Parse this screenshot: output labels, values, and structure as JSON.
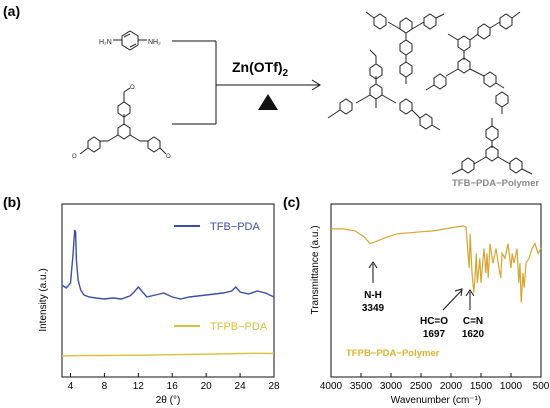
{
  "panel_labels": {
    "a": "(a)",
    "b": "(b)",
    "c": "(c)"
  },
  "scheme": {
    "reagent": "Zn(OTf)",
    "reagent_subscript": "2",
    "product_label": "TFB−PDA−Polymer"
  },
  "colors": {
    "tfb_pda": "#3b4fa6",
    "tfpb_pda": "#d9c23a",
    "ir": "#d8a530",
    "ir_label": "#d9b530"
  },
  "chart_data": [
    {
      "type": "line",
      "title": "",
      "xlabel": "2θ (°)",
      "ylabel": "Intensity (a.u.)",
      "xlim": [
        3,
        28
      ],
      "x_ticks": [
        "4",
        "8",
        "12",
        "16",
        "20",
        "24",
        "28"
      ],
      "x_tick_values": [
        4,
        8,
        12,
        16,
        20,
        24,
        28
      ],
      "legend_placement": "inline labels right",
      "series": [
        {
          "name": "TFB−PDA",
          "x": [
            3,
            3.5,
            4,
            4.3,
            4.5,
            4.6,
            4.7,
            4.9,
            5.2,
            5.6,
            6.2,
            7,
            8,
            9,
            10,
            11,
            11.5,
            12,
            12.5,
            13,
            14,
            15,
            16,
            17,
            18,
            19,
            20,
            21,
            22,
            23,
            23.5,
            24,
            25,
            26,
            27,
            28
          ],
          "y": [
            0.45,
            0.42,
            0.47,
            0.75,
            1.0,
            0.98,
            0.7,
            0.5,
            0.4,
            0.35,
            0.33,
            0.32,
            0.31,
            0.32,
            0.31,
            0.34,
            0.38,
            0.43,
            0.38,
            0.33,
            0.35,
            0.37,
            0.33,
            0.31,
            0.33,
            0.34,
            0.35,
            0.36,
            0.37,
            0.39,
            0.43,
            0.38,
            0.36,
            0.39,
            0.37,
            0.33
          ]
        },
        {
          "name": "TFPB−PDA",
          "x": [
            3,
            5,
            8,
            12,
            16,
            20,
            24,
            26,
            28
          ],
          "y": [
            0.0,
            0.01,
            0.015,
            0.02,
            0.035,
            0.05,
            0.07,
            0.075,
            0.07
          ]
        }
      ]
    },
    {
      "type": "line",
      "title": "",
      "xlabel": "Wavenumber (cm⁻¹)",
      "ylabel": "Transmittance (a.u.)",
      "xlim": [
        4000,
        500
      ],
      "x_ticks": [
        "4000",
        "3500",
        "3000",
        "2500",
        "2000",
        "1500",
        "1000",
        "500"
      ],
      "x_tick_values": [
        4000,
        3500,
        3000,
        2500,
        2000,
        1500,
        1000,
        500
      ],
      "series": [
        {
          "name": "TFPB−PDA−Polymer",
          "x": [
            4000,
            3800,
            3600,
            3450,
            3349,
            3250,
            3100,
            3000,
            2900,
            2700,
            2500,
            2300,
            2100,
            2000,
            1900,
            1800,
            1750,
            1697,
            1680,
            1650,
            1620,
            1600,
            1580,
            1560,
            1520,
            1500,
            1450,
            1420,
            1400,
            1380,
            1350,
            1300,
            1250,
            1200,
            1170,
            1150,
            1100,
            1050,
            1000,
            980,
            950,
            900,
            870,
            850,
            830,
            800,
            780,
            750,
            700,
            650,
            600,
            550,
            500
          ],
          "y": [
            0.95,
            0.95,
            0.93,
            0.87,
            0.8,
            0.82,
            0.86,
            0.88,
            0.9,
            0.91,
            0.92,
            0.93,
            0.95,
            0.96,
            0.97,
            0.98,
            0.97,
            0.55,
            0.9,
            0.5,
            0.3,
            0.45,
            0.7,
            0.4,
            0.65,
            0.4,
            0.75,
            0.5,
            0.7,
            0.45,
            0.8,
            0.6,
            0.75,
            0.55,
            0.45,
            0.7,
            0.65,
            0.8,
            0.55,
            0.7,
            0.6,
            0.75,
            0.4,
            0.6,
            0.2,
            0.5,
            0.35,
            0.6,
            0.65,
            0.75,
            0.8,
            0.7,
            0.75
          ]
        }
      ],
      "annotations": [
        {
          "label": "N-H",
          "value": "3349"
        },
        {
          "label": "HC=O",
          "value": "1697"
        },
        {
          "label": "C=N",
          "value": "1620"
        }
      ]
    }
  ]
}
